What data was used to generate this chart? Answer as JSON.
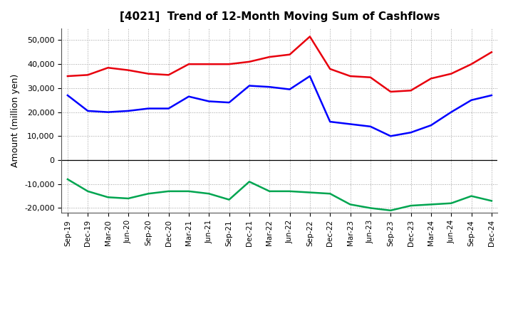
{
  "title": "[4021]  Trend of 12-Month Moving Sum of Cashflows",
  "ylabel": "Amount (million yen)",
  "xlabels": [
    "Sep-19",
    "Dec-19",
    "Mar-20",
    "Jun-20",
    "Sep-20",
    "Dec-20",
    "Mar-21",
    "Jun-21",
    "Sep-21",
    "Dec-21",
    "Mar-22",
    "Jun-22",
    "Sep-22",
    "Dec-22",
    "Mar-23",
    "Jun-23",
    "Sep-23",
    "Dec-23",
    "Mar-24",
    "Jun-24",
    "Sep-24",
    "Dec-24"
  ],
  "operating": [
    35000,
    35500,
    38500,
    37500,
    36000,
    35500,
    40000,
    40000,
    40000,
    41000,
    43000,
    44000,
    51500,
    38000,
    35000,
    34500,
    28500,
    29000,
    34000,
    36000,
    40000,
    45000
  ],
  "investing": [
    -8000,
    -13000,
    -15500,
    -16000,
    -14000,
    -13000,
    -13000,
    -14000,
    -16500,
    -9000,
    -13000,
    -13000,
    -13500,
    -14000,
    -18500,
    -20000,
    -21000,
    -19000,
    -18500,
    -18000,
    -15000,
    -17000
  ],
  "free": [
    27000,
    20500,
    20000,
    20500,
    21500,
    21500,
    26500,
    24500,
    24000,
    31000,
    30500,
    29500,
    35000,
    16000,
    15000,
    14000,
    10000,
    11500,
    14500,
    20000,
    25000,
    27000
  ],
  "ylim": [
    -22000,
    55000
  ],
  "yticks": [
    -20000,
    -10000,
    0,
    10000,
    20000,
    30000,
    40000,
    50000
  ],
  "operating_color": "#e8000d",
  "investing_color": "#00a550",
  "free_color": "#0000ff",
  "background_color": "#ffffff",
  "grid_color": "#a0a0a0",
  "linewidth": 1.8
}
